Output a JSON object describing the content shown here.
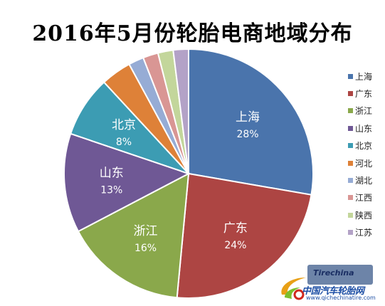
{
  "chart_data": {
    "type": "pie",
    "title": "2016年5月份轮胎电商地域分布",
    "categories": [
      "上海",
      "广东",
      "浙江",
      "山东",
      "北京",
      "河北",
      "湖北",
      "江西",
      "陕西",
      "江苏"
    ],
    "values": [
      28,
      24,
      16,
      13,
      8,
      4,
      2,
      2,
      2,
      2
    ],
    "value_labels": [
      "28%",
      "24%",
      "16%",
      "13%",
      "8%",
      "",
      "",
      "",
      "",
      ""
    ],
    "colors": [
      "#4a74ac",
      "#ad4543",
      "#8aa84b",
      "#6f5895",
      "#3c9cb3",
      "#de8138",
      "#96acd5",
      "#d99694",
      "#c3d69b",
      "#b3a2c7"
    ],
    "legend_position": "right",
    "start_angle_deg": 0,
    "direction": "clockwise"
  },
  "watermark": {
    "badge_text": "Tirechina",
    "site_name": "中国汽车轮胎网",
    "url": "www.qichechinatire.com"
  }
}
